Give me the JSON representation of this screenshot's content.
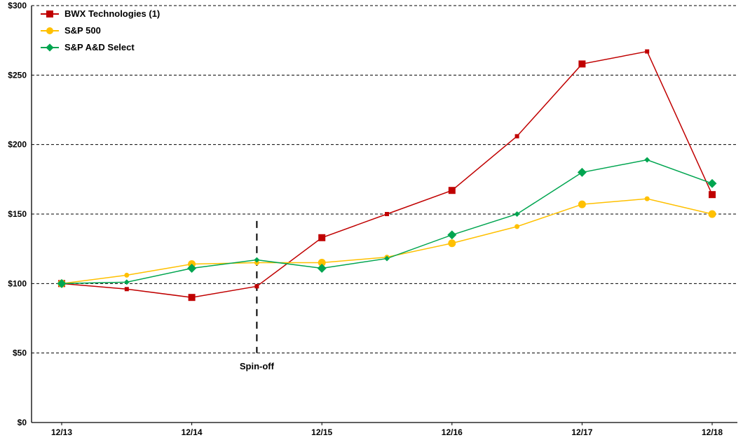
{
  "chart_data": {
    "type": "line",
    "title": "",
    "xlabel": "",
    "ylabel": "",
    "ylim": [
      0,
      300
    ],
    "y_ticks": [
      0,
      50,
      100,
      150,
      200,
      250,
      300
    ],
    "y_tick_labels": [
      "$0",
      "$50",
      "$100",
      "$150",
      "$200",
      "$250",
      "$300"
    ],
    "x_point_count": 11,
    "x_ticks": [
      {
        "index": 0,
        "label": "12/13"
      },
      {
        "index": 2,
        "label": "12/14"
      },
      {
        "index": 4,
        "label": "12/15"
      },
      {
        "index": 6,
        "label": "12/16"
      },
      {
        "index": 8,
        "label": "12/17"
      },
      {
        "index": 10,
        "label": "12/18"
      }
    ],
    "grid": "horizontal-dashed",
    "legend_position": "top-left-inside",
    "series": [
      {
        "name": "BWX Technologies (1)",
        "color": "#C00000",
        "marker": "square",
        "values": [
          100,
          96,
          90,
          98,
          133,
          150,
          167,
          206,
          258,
          267,
          164
        ]
      },
      {
        "name": "S&P 500",
        "color": "#FFC000",
        "marker": "circle",
        "values": [
          100,
          106,
          114,
          115,
          115,
          119,
          129,
          141,
          157,
          161,
          150
        ]
      },
      {
        "name": "S&P A&D Select",
        "color": "#00A550",
        "marker": "diamond",
        "values": [
          100,
          101,
          111,
          117,
          111,
          118,
          135,
          150,
          180,
          189,
          172
        ]
      }
    ],
    "annotation": {
      "label": "Spin-off",
      "x_index": 3,
      "y_from": 50,
      "y_to": 145,
      "style": "vertical-dashed-line"
    }
  },
  "colors": {
    "axis": "#000000",
    "gridline": "#000000",
    "background": "#FFFFFF",
    "text": "#000000"
  }
}
